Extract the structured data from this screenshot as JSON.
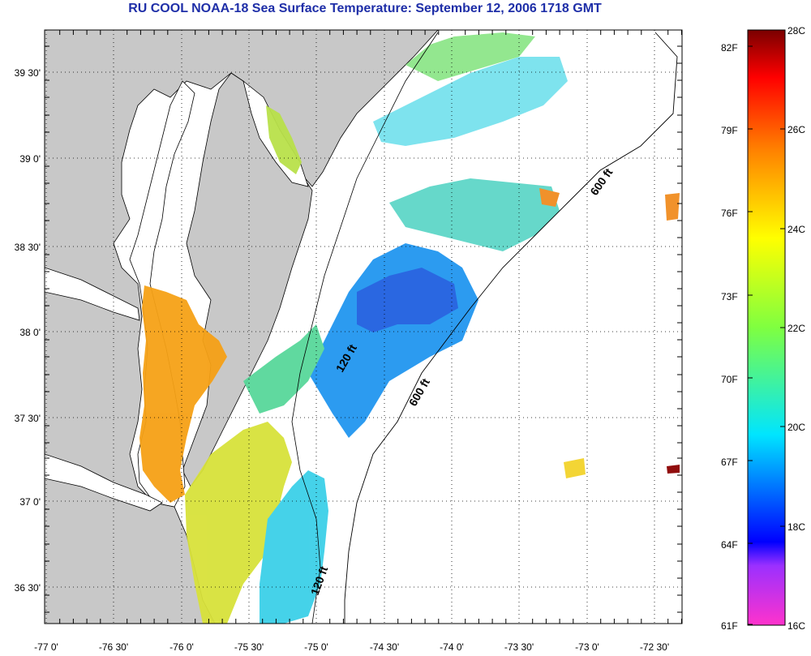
{
  "title": "RU COOL  NOAA-18  Sea Surface Temperature:  September 12, 2006 1718 GMT",
  "map": {
    "lat_labels": [
      "39 30'",
      "39 0'",
      "38 30'",
      "38 0'",
      "37 30'",
      "37 0'",
      "36 30'"
    ],
    "lon_labels": [
      "-77 0'",
      "-76 30'",
      "-76 0'",
      "-75 30'",
      "-75 0'",
      "-74 30'",
      "-74 0'",
      "-73 30'",
      "-73 0'",
      "-72 30'"
    ],
    "contour_labels": [
      "600 ft",
      "600 ft",
      "120 ft",
      "120 ft"
    ],
    "colors": {
      "land": "#c8c8c8",
      "ocean": "#ffffff"
    }
  },
  "colorbar": {
    "fahrenheit_labels": [
      "82F",
      "79F",
      "76F",
      "73F",
      "70F",
      "67F",
      "64F",
      "61F"
    ],
    "celsius_labels": [
      "28C",
      "26C",
      "24C",
      "22C",
      "20C",
      "18C",
      "16C"
    ],
    "range_c": [
      16,
      28
    ],
    "colors": [
      "#ff33cc",
      "#0000ff",
      "#00e5ff",
      "#7fff40",
      "#ffff00",
      "#ff8000",
      "#ff0000",
      "#8b0000"
    ]
  }
}
